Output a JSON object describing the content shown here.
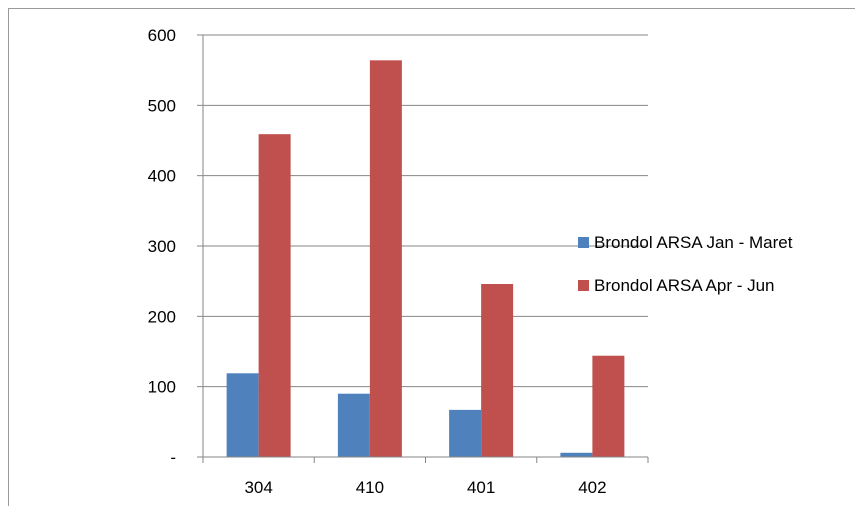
{
  "chart_data": {
    "type": "bar",
    "categories": [
      "304",
      "410",
      "401",
      "402"
    ],
    "series": [
      {
        "name": "Brondol ARSA Jan - Maret",
        "color": "#4F81BD",
        "values": [
          119,
          90,
          67,
          6
        ]
      },
      {
        "name": "Brondol ARSA Apr - Jun",
        "color": "#C0504D",
        "values": [
          459,
          564,
          246,
          144
        ]
      }
    ],
    "ylim": [
      0,
      600
    ],
    "yticks": [
      0,
      100,
      200,
      300,
      400,
      500,
      600
    ],
    "ytick_labels": [
      "-",
      "100",
      "200",
      "300",
      "400",
      "500",
      "600"
    ],
    "grid": true,
    "legend_position": "right",
    "title": "",
    "xlabel": "",
    "ylabel": ""
  }
}
